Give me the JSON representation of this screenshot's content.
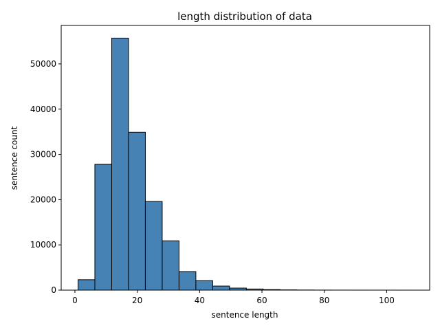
{
  "chart_data": {
    "type": "bar",
    "title": "length distribution of data",
    "xlabel": "sentence length",
    "ylabel": "sentence count",
    "bar_color": "#4682b4",
    "edge_color": "#000000",
    "xlim": [
      -4.4,
      113.8
    ],
    "ylim": [
      0,
      58500
    ],
    "x_ticks": [
      0,
      20,
      40,
      60,
      80,
      100
    ],
    "y_ticks": [
      0,
      10000,
      20000,
      30000,
      40000,
      50000
    ],
    "bins": [
      {
        "start": 1.0,
        "end": 6.4,
        "value": 2300
      },
      {
        "start": 6.4,
        "end": 11.8,
        "value": 27800
      },
      {
        "start": 11.8,
        "end": 17.2,
        "value": 55700
      },
      {
        "start": 17.2,
        "end": 22.6,
        "value": 34900
      },
      {
        "start": 22.6,
        "end": 28.0,
        "value": 19600
      },
      {
        "start": 28.0,
        "end": 33.4,
        "value": 10900
      },
      {
        "start": 33.4,
        "end": 38.8,
        "value": 4100
      },
      {
        "start": 38.8,
        "end": 44.2,
        "value": 2100
      },
      {
        "start": 44.2,
        "end": 49.6,
        "value": 900
      },
      {
        "start": 49.6,
        "end": 55.0,
        "value": 450
      },
      {
        "start": 55.0,
        "end": 60.4,
        "value": 250
      },
      {
        "start": 60.4,
        "end": 65.8,
        "value": 120
      },
      {
        "start": 65.8,
        "end": 71.2,
        "value": 60
      },
      {
        "start": 71.2,
        "end": 76.6,
        "value": 30
      },
      {
        "start": 76.6,
        "end": 82.0,
        "value": 15
      },
      {
        "start": 82.0,
        "end": 87.4,
        "value": 8
      },
      {
        "start": 87.4,
        "end": 92.8,
        "value": 5
      },
      {
        "start": 92.8,
        "end": 98.2,
        "value": 3
      },
      {
        "start": 98.2,
        "end": 103.6,
        "value": 2
      },
      {
        "start": 103.6,
        "end": 109.0,
        "value": 1
      }
    ]
  }
}
